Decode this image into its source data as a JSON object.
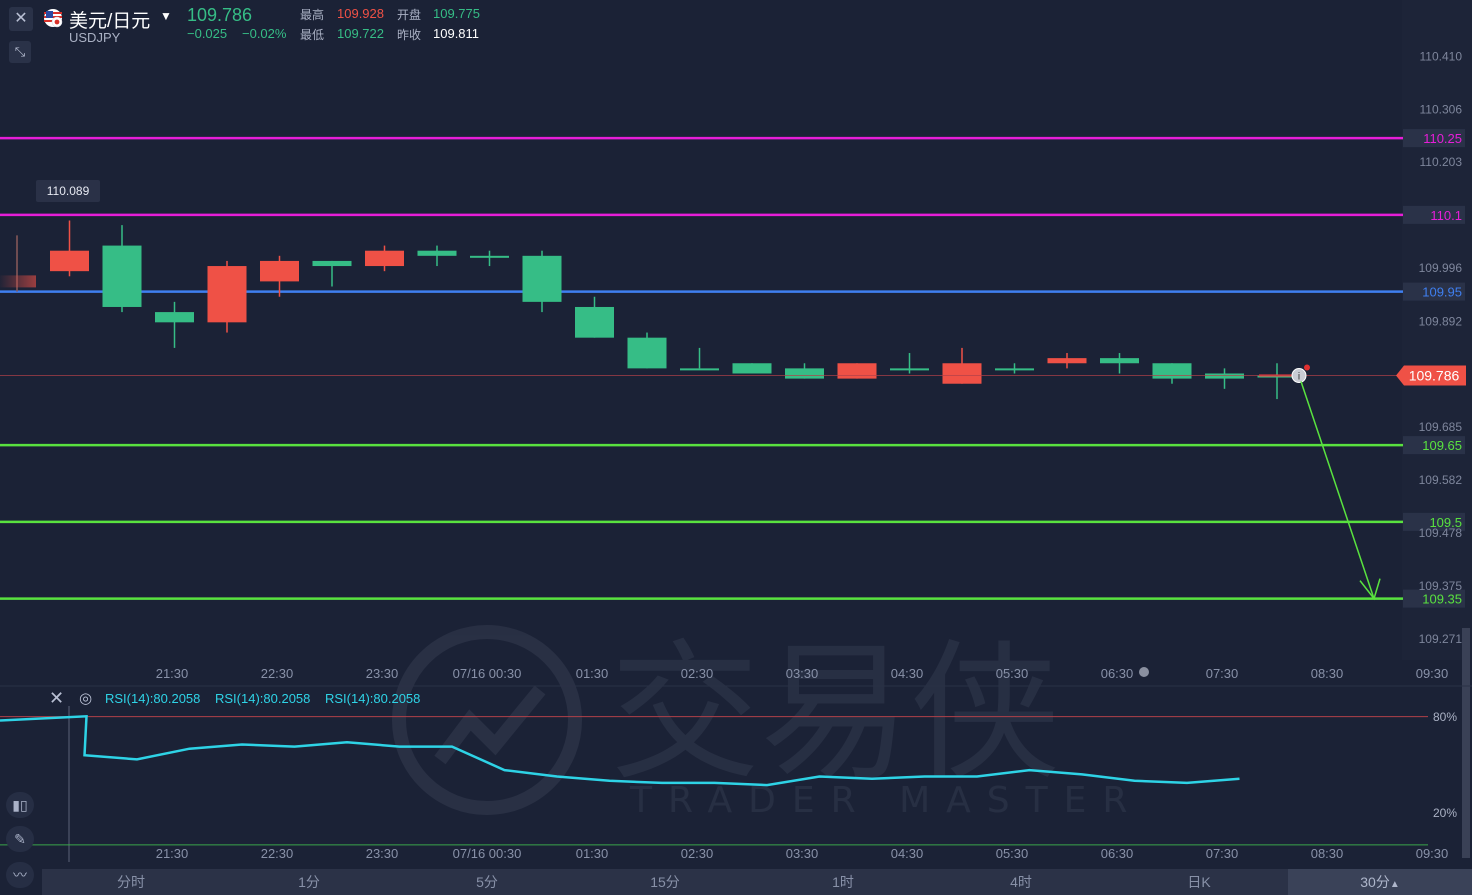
{
  "header": {
    "instrument_name": "美元/日元",
    "instrument_code": "USDJPY",
    "last_price": "109.786",
    "change": "−0.025",
    "change_pct": "−0.02%",
    "high_label": "最高",
    "high": "109.928",
    "open_label": "开盘",
    "open": "109.775",
    "low_label": "最低",
    "low": "109.722",
    "prev_close_label": "昨收",
    "prev_close": "109.811"
  },
  "colors": {
    "up": "#36bd86",
    "down": "#ef5146",
    "resistance": "#e61ed8",
    "pivot": "#3f7ff0",
    "support": "#59e23f",
    "rsi": "#2ed3e6",
    "background": "#1b2236"
  },
  "icons": [
    "close-icon",
    "collapse-icon",
    "us-flag-icon",
    "dropdown-caret-icon",
    "info-icon",
    "eye-icon",
    "candle-icon",
    "pencil-icon",
    "indicator-icon",
    "arrow-up-icon"
  ],
  "watermark": {
    "brand": "交易侠",
    "brand_en": "TRADER MASTER"
  },
  "rsi_panel": {
    "legend": [
      "RSI(14):80.2058",
      "RSI(14):80.2058",
      "RSI(14):80.2058"
    ],
    "level_high_label": "80%",
    "level_low_label": "20%"
  },
  "periods": {
    "items": [
      "分时",
      "1分",
      "5分",
      "15分",
      "1时",
      "4时",
      "日K",
      "30分"
    ],
    "active": "30分"
  },
  "chart_data": {
    "type": "candlestick",
    "interval": "30分",
    "x_tick_labels": [
      "21:30",
      "22:30",
      "23:30",
      "07/16 00:30",
      "01:30",
      "02:30",
      "03:30",
      "04:30",
      "05:30",
      "06:30",
      "07:30",
      "08:30",
      "09:30"
    ],
    "y_tick_labels": [
      "110.410",
      "110.306",
      "110.203",
      "109.996",
      "109.892",
      "109.685",
      "109.582",
      "109.478",
      "109.375",
      "109.271"
    ],
    "ylim": [
      109.23,
      110.52
    ],
    "candles": [
      {
        "o": 109.97,
        "h": 110.06,
        "l": 109.95,
        "c": 109.97,
        "faded": true
      },
      {
        "o": 110.03,
        "h": 110.089,
        "l": 109.98,
        "c": 109.99
      },
      {
        "o": 109.92,
        "h": 110.08,
        "l": 109.91,
        "c": 110.04
      },
      {
        "o": 109.89,
        "h": 109.93,
        "l": 109.84,
        "c": 109.91
      },
      {
        "o": 110.0,
        "h": 110.01,
        "l": 109.87,
        "c": 109.89
      },
      {
        "o": 110.01,
        "h": 110.02,
        "l": 109.94,
        "c": 109.97
      },
      {
        "o": 110.0,
        "h": 110.01,
        "l": 109.96,
        "c": 110.01
      },
      {
        "o": 110.03,
        "h": 110.04,
        "l": 109.99,
        "c": 110.0
      },
      {
        "o": 110.02,
        "h": 110.04,
        "l": 110.0,
        "c": 110.03
      },
      {
        "o": 110.02,
        "h": 110.03,
        "l": 110.0,
        "c": 110.02
      },
      {
        "o": 109.93,
        "h": 110.03,
        "l": 109.91,
        "c": 110.02
      },
      {
        "o": 109.86,
        "h": 109.94,
        "l": 109.86,
        "c": 109.92
      },
      {
        "o": 109.8,
        "h": 109.87,
        "l": 109.8,
        "c": 109.86
      },
      {
        "o": 109.8,
        "h": 109.84,
        "l": 109.8,
        "c": 109.8
      },
      {
        "o": 109.79,
        "h": 109.81,
        "l": 109.79,
        "c": 109.81
      },
      {
        "o": 109.78,
        "h": 109.81,
        "l": 109.78,
        "c": 109.8
      },
      {
        "o": 109.81,
        "h": 109.81,
        "l": 109.78,
        "c": 109.78
      },
      {
        "o": 109.8,
        "h": 109.83,
        "l": 109.79,
        "c": 109.8
      },
      {
        "o": 109.81,
        "h": 109.84,
        "l": 109.77,
        "c": 109.77
      },
      {
        "o": 109.8,
        "h": 109.81,
        "l": 109.79,
        "c": 109.8
      },
      {
        "o": 109.82,
        "h": 109.83,
        "l": 109.8,
        "c": 109.81
      },
      {
        "o": 109.81,
        "h": 109.83,
        "l": 109.79,
        "c": 109.82
      },
      {
        "o": 109.78,
        "h": 109.81,
        "l": 109.77,
        "c": 109.81
      },
      {
        "o": 109.78,
        "h": 109.8,
        "l": 109.76,
        "c": 109.79
      },
      {
        "o": 109.786,
        "h": 109.81,
        "l": 109.74,
        "c": 109.786,
        "current": true
      }
    ],
    "high_marker": "110.089",
    "current_price_label": "109.786",
    "horizontal_lines": [
      {
        "value": 110.25,
        "label": "110.25",
        "kind": "resistance"
      },
      {
        "value": 110.1,
        "label": "110.1",
        "kind": "resistance"
      },
      {
        "value": 109.95,
        "label": "109.95",
        "kind": "pivot"
      },
      {
        "value": 109.65,
        "label": "109.65",
        "kind": "support"
      },
      {
        "value": 109.5,
        "label": "109.5",
        "kind": "support"
      },
      {
        "value": 109.35,
        "label": "109.35",
        "kind": "support"
      }
    ],
    "projection_arrow": {
      "from_price": 109.786,
      "to_price": 109.35
    },
    "rsi": {
      "period": 14,
      "levels": [
        80,
        20
      ],
      "ylim": [
        12,
        85
      ],
      "values": [
        80.2,
        62,
        60,
        65,
        67,
        66,
        68,
        66,
        66,
        55,
        52,
        50,
        49,
        49,
        48,
        52,
        51,
        52,
        52,
        55,
        53,
        50,
        49,
        51
      ]
    }
  }
}
